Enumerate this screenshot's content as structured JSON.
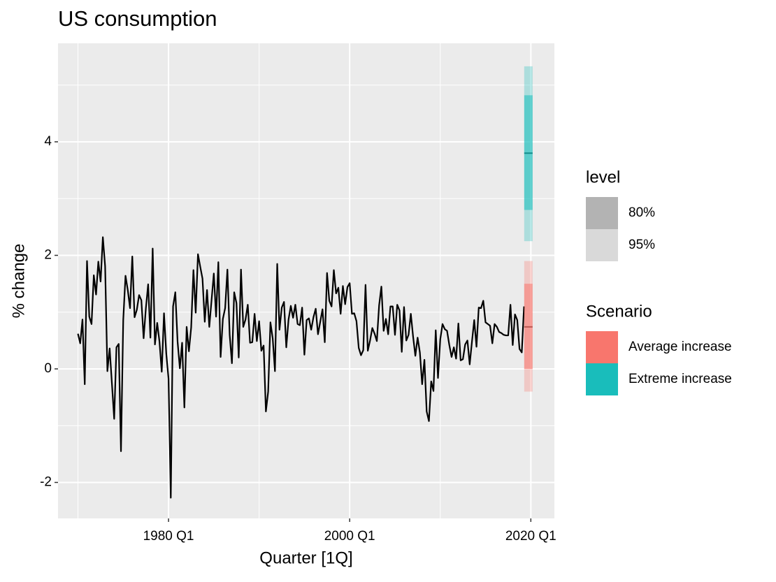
{
  "chart_data": {
    "type": "line",
    "title": "US consumption",
    "x_label": "Quarter [1Q]",
    "y_label": "% change",
    "x": [
      1970,
      1970.25,
      1970.5,
      1970.75,
      1971,
      1971.25,
      1971.5,
      1971.75,
      1972,
      1972.25,
      1972.5,
      1972.75,
      1973,
      1973.25,
      1973.5,
      1973.75,
      1974,
      1974.25,
      1974.5,
      1974.75,
      1975,
      1975.25,
      1975.5,
      1975.75,
      1976,
      1976.25,
      1976.5,
      1976.75,
      1977,
      1977.25,
      1977.5,
      1977.75,
      1978,
      1978.25,
      1978.5,
      1978.75,
      1979,
      1979.25,
      1979.5,
      1979.75,
      1980,
      1980.25,
      1980.5,
      1980.75,
      1981,
      1981.25,
      1981.5,
      1981.75,
      1982,
      1982.25,
      1982.5,
      1982.75,
      1983,
      1983.25,
      1983.5,
      1983.75,
      1984,
      1984.25,
      1984.5,
      1984.75,
      1985,
      1985.25,
      1985.5,
      1985.75,
      1986,
      1986.25,
      1986.5,
      1986.75,
      1987,
      1987.25,
      1987.5,
      1987.75,
      1988,
      1988.25,
      1988.5,
      1988.75,
      1989,
      1989.25,
      1989.5,
      1989.75,
      1990,
      1990.25,
      1990.5,
      1990.75,
      1991,
      1991.25,
      1991.5,
      1991.75,
      1992,
      1992.25,
      1992.5,
      1992.75,
      1993,
      1993.25,
      1993.5,
      1993.75,
      1994,
      1994.25,
      1994.5,
      1994.75,
      1995,
      1995.25,
      1995.5,
      1995.75,
      1996,
      1996.25,
      1996.5,
      1996.75,
      1997,
      1997.25,
      1997.5,
      1997.75,
      1998,
      1998.25,
      1998.5,
      1998.75,
      1999,
      1999.25,
      1999.5,
      1999.75,
      2000,
      2000.25,
      2000.5,
      2000.75,
      2001,
      2001.25,
      2001.5,
      2001.75,
      2002,
      2002.25,
      2002.5,
      2002.75,
      2003,
      2003.25,
      2003.5,
      2003.75,
      2004,
      2004.25,
      2004.5,
      2004.75,
      2005,
      2005.25,
      2005.5,
      2005.75,
      2006,
      2006.25,
      2006.5,
      2006.75,
      2007,
      2007.25,
      2007.5,
      2007.75,
      2008,
      2008.25,
      2008.5,
      2008.75,
      2009,
      2009.25,
      2009.5,
      2009.75,
      2010,
      2010.25,
      2010.5,
      2010.75,
      2011,
      2011.25,
      2011.5,
      2011.75,
      2012,
      2012.25,
      2012.5,
      2012.75,
      2013,
      2013.25,
      2013.5,
      2013.75,
      2014,
      2014.25,
      2014.5,
      2014.75,
      2015,
      2015.25,
      2015.5,
      2015.75,
      2016,
      2016.25,
      2016.5,
      2016.75,
      2017,
      2017.25,
      2017.5,
      2017.75,
      2018,
      2018.25,
      2018.5,
      2018.75,
      2019,
      2019.25
    ],
    "series": [
      {
        "name": "Consumption",
        "color": "#000000",
        "values": [
          0.62,
          0.45,
          0.87,
          -0.27,
          1.9,
          0.92,
          0.79,
          1.65,
          1.31,
          1.89,
          1.54,
          2.32,
          1.81,
          -0.04,
          0.36,
          -0.26,
          -0.88,
          0.38,
          0.44,
          -1.45,
          0.86,
          1.64,
          1.39,
          1.07,
          1.98,
          0.91,
          1.04,
          1.3,
          1.21,
          0.54,
          1.07,
          1.49,
          0.55,
          2.12,
          0.43,
          0.81,
          0.48,
          -0.05,
          0.98,
          0.27,
          -0.17,
          -2.27,
          1.1,
          1.35,
          0.48,
          0.01,
          0.46,
          -0.68,
          0.74,
          0.31,
          0.73,
          1.74,
          0.99,
          2.02,
          1.8,
          1.59,
          0.83,
          1.39,
          0.74,
          1.21,
          1.68,
          0.92,
          1.88,
          0.21,
          0.88,
          1.07,
          1.75,
          0.6,
          0.1,
          1.35,
          1.16,
          0.2,
          1.75,
          0.74,
          0.87,
          1.13,
          0.46,
          0.47,
          0.97,
          0.49,
          0.84,
          0.32,
          0.41,
          -0.75,
          -0.4,
          0.82,
          0.54,
          -0.04,
          1.85,
          0.69,
          1.08,
          1.18,
          0.38,
          0.87,
          1.11,
          0.9,
          1.13,
          0.79,
          0.77,
          1.08,
          0.25,
          0.86,
          0.89,
          0.69,
          0.91,
          1.06,
          0.61,
          0.83,
          1.05,
          0.47,
          1.69,
          1.2,
          1.1,
          1.74,
          1.33,
          1.43,
          0.97,
          1.46,
          1.14,
          1.44,
          1.51,
          0.97,
          0.98,
          0.84,
          0.37,
          0.24,
          0.33,
          1.48,
          0.32,
          0.5,
          0.72,
          0.62,
          0.49,
          1.12,
          1.45,
          0.67,
          0.88,
          0.61,
          1.1,
          1.1,
          0.6,
          1.13,
          1.03,
          0.3,
          1.09,
          0.5,
          0.6,
          0.97,
          0.57,
          0.23,
          0.55,
          0.29,
          -0.27,
          0.16,
          -0.75,
          -0.92,
          -0.22,
          -0.39,
          0.68,
          -0.16,
          0.52,
          0.79,
          0.7,
          0.67,
          0.42,
          0.21,
          0.38,
          0.18,
          0.8,
          0.15,
          0.17,
          0.43,
          0.5,
          0.08,
          0.48,
          0.86,
          0.39,
          1.08,
          1.07,
          1.2,
          0.82,
          0.79,
          0.76,
          0.45,
          0.79,
          0.74,
          0.65,
          0.63,
          0.6,
          0.59,
          0.59,
          1.13,
          0.42,
          0.96,
          0.86,
          0.35,
          0.29,
          1.1
        ]
      }
    ],
    "forecast": [
      {
        "name": "Average increase",
        "color": "#F8766D",
        "x": 2019.5,
        "mean": 0.74,
        "lo80": 0.0,
        "hi80": 1.5,
        "lo95": -0.4,
        "hi95": 1.9
      },
      {
        "name": "Extreme increase",
        "color": "#19BDBB",
        "x": 2019.5,
        "mean": 3.8,
        "lo80": 2.8,
        "hi80": 4.82,
        "lo95": 2.25,
        "hi95": 5.33
      }
    ],
    "scenario_legend_title": "Scenario",
    "level_legend": {
      "title": "level",
      "items": [
        {
          "name": "80%",
          "color": "#b3b3b3"
        },
        {
          "name": "95%",
          "color": "#d9d9d9"
        }
      ]
    },
    "xlim": [
      1967.8,
      2022.6
    ],
    "xticks": [
      {
        "value": 1980,
        "label": "1980 Q1"
      },
      {
        "value": 2000,
        "label": "2000 Q1"
      },
      {
        "value": 2020,
        "label": "2020 Q1"
      }
    ],
    "xminor": [
      1970,
      1990,
      2010
    ],
    "ylim": [
      -2.634,
      5.735
    ],
    "yticks": [
      -2,
      0,
      2,
      4
    ],
    "yminor": [
      -1,
      1,
      3,
      5
    ],
    "grid": true
  }
}
